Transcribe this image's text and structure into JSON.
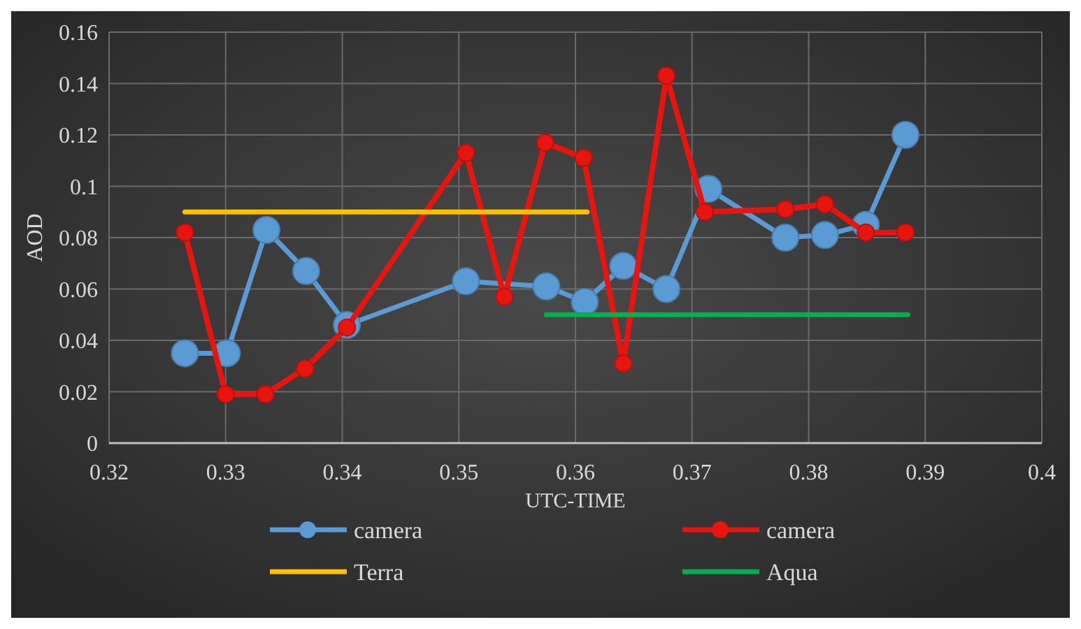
{
  "chart_data": {
    "type": "line",
    "xlabel": "UTC-TIME",
    "ylabel": "AOD",
    "xlim": [
      0.32,
      0.4
    ],
    "xticks": [
      0.32,
      0.33,
      0.34,
      0.35,
      0.36,
      0.37,
      0.38,
      0.39,
      {
        "value": 0.4,
        "label": "0.4"
      }
    ],
    "ylim": [
      0,
      0.16
    ],
    "yticks": [
      {
        "value": 0,
        "label": "0"
      },
      0.02,
      0.04,
      0.06,
      0.08,
      {
        "value": 0.1,
        "label": "0.1"
      },
      0.12,
      0.14,
      0.16
    ],
    "grid": true,
    "legend": "bottom",
    "marker": "circle",
    "line_style": "solid",
    "series": [
      {
        "name": "camera",
        "color": "#5b9bd5",
        "x": [
          0.3265,
          0.3301,
          0.3335,
          0.3369,
          0.3404,
          0.3506,
          0.3575,
          0.3608,
          0.3641,
          0.3678,
          0.3714,
          0.378,
          0.3814,
          0.3849,
          0.3883
        ],
        "values": [
          0.035,
          0.035,
          0.083,
          0.067,
          0.046,
          0.063,
          0.061,
          0.055,
          0.069,
          0.06,
          0.099,
          0.08,
          0.081,
          0.085,
          0.12
        ]
      },
      {
        "name": "camera",
        "color": "#e8150f",
        "x": [
          0.3265,
          0.33,
          0.3334,
          0.3368,
          0.3404,
          0.3506,
          0.3539,
          0.3574,
          0.3607,
          0.3641,
          0.3678,
          0.3711,
          0.378,
          0.3814,
          0.3849,
          0.3883
        ],
        "values": [
          0.082,
          0.019,
          0.019,
          0.029,
          0.045,
          0.113,
          0.057,
          0.117,
          0.111,
          0.031,
          0.143,
          0.09,
          0.091,
          0.093,
          0.082,
          0.082
        ]
      },
      {
        "name": "Terra",
        "color": "#ffc000",
        "marker": "none",
        "x": [
          0.3265,
          0.361
        ],
        "values": [
          0.09,
          0.09
        ]
      },
      {
        "name": "Aqua",
        "color": "#00b050",
        "marker": "none",
        "x": [
          0.3575,
          0.3885
        ],
        "values": [
          0.05,
          0.05
        ]
      }
    ]
  }
}
